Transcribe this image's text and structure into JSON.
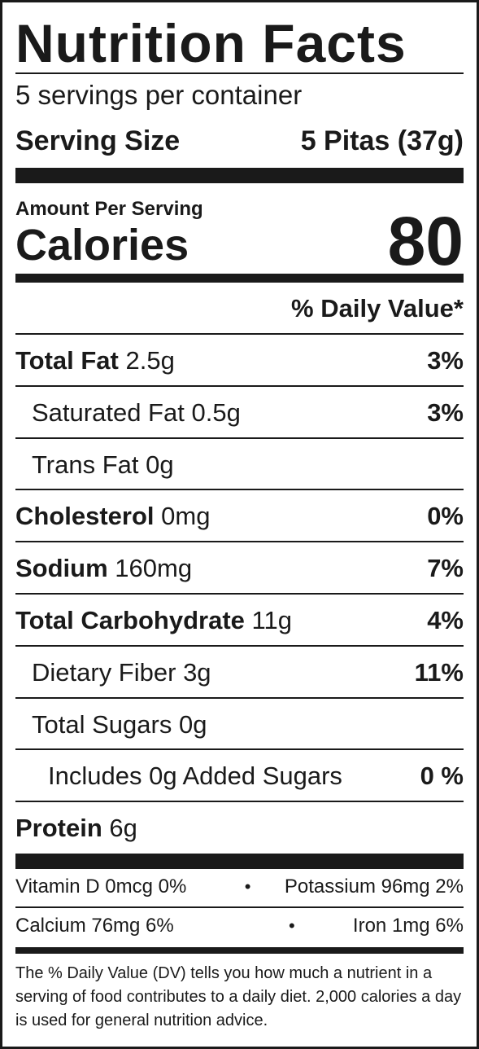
{
  "title": "Nutrition Facts",
  "servings_per_container": "5 servings per container",
  "serving_size": {
    "label": "Serving Size",
    "value": "5 Pitas (37g)"
  },
  "amount_per_serving": "Amount Per Serving",
  "calories": {
    "label": "Calories",
    "value": "80"
  },
  "daily_value_header": "% Daily Value*",
  "nutrients": [
    {
      "name": "Total Fat",
      "amount": "2.5g",
      "dv": "3%"
    },
    {
      "name": "Saturated Fat",
      "amount": "0.5g",
      "dv": "3%"
    },
    {
      "name": "Trans Fat",
      "amount": "0g",
      "dv": ""
    },
    {
      "name": "Cholesterol",
      "amount": "0mg",
      "dv": "0%"
    },
    {
      "name": "Sodium",
      "amount": "160mg",
      "dv": "7%"
    },
    {
      "name": "Total Carbohydrate",
      "amount": "11g",
      "dv": "4%"
    },
    {
      "name": "Dietary Fiber",
      "amount": "3g",
      "dv": "11%"
    },
    {
      "name": "Total Sugars",
      "amount": "0g",
      "dv": ""
    },
    {
      "name": "Includes 0g Added Sugars",
      "amount": "",
      "dv": "0 %"
    },
    {
      "name": "Protein",
      "amount": "6g",
      "dv": ""
    }
  ],
  "vitamins": [
    {
      "left": "Vitamin D 0mcg 0%",
      "right": "Potassium 96mg 2%"
    },
    {
      "left": "Calcium 76mg 6%",
      "right": "Iron 1mg 6%"
    }
  ],
  "separator": "•",
  "footnote": "The % Daily Value (DV) tells you how much a nutrient in a serving of food contributes to a daily diet. 2,000 calories a day is used for general nutrition advice."
}
